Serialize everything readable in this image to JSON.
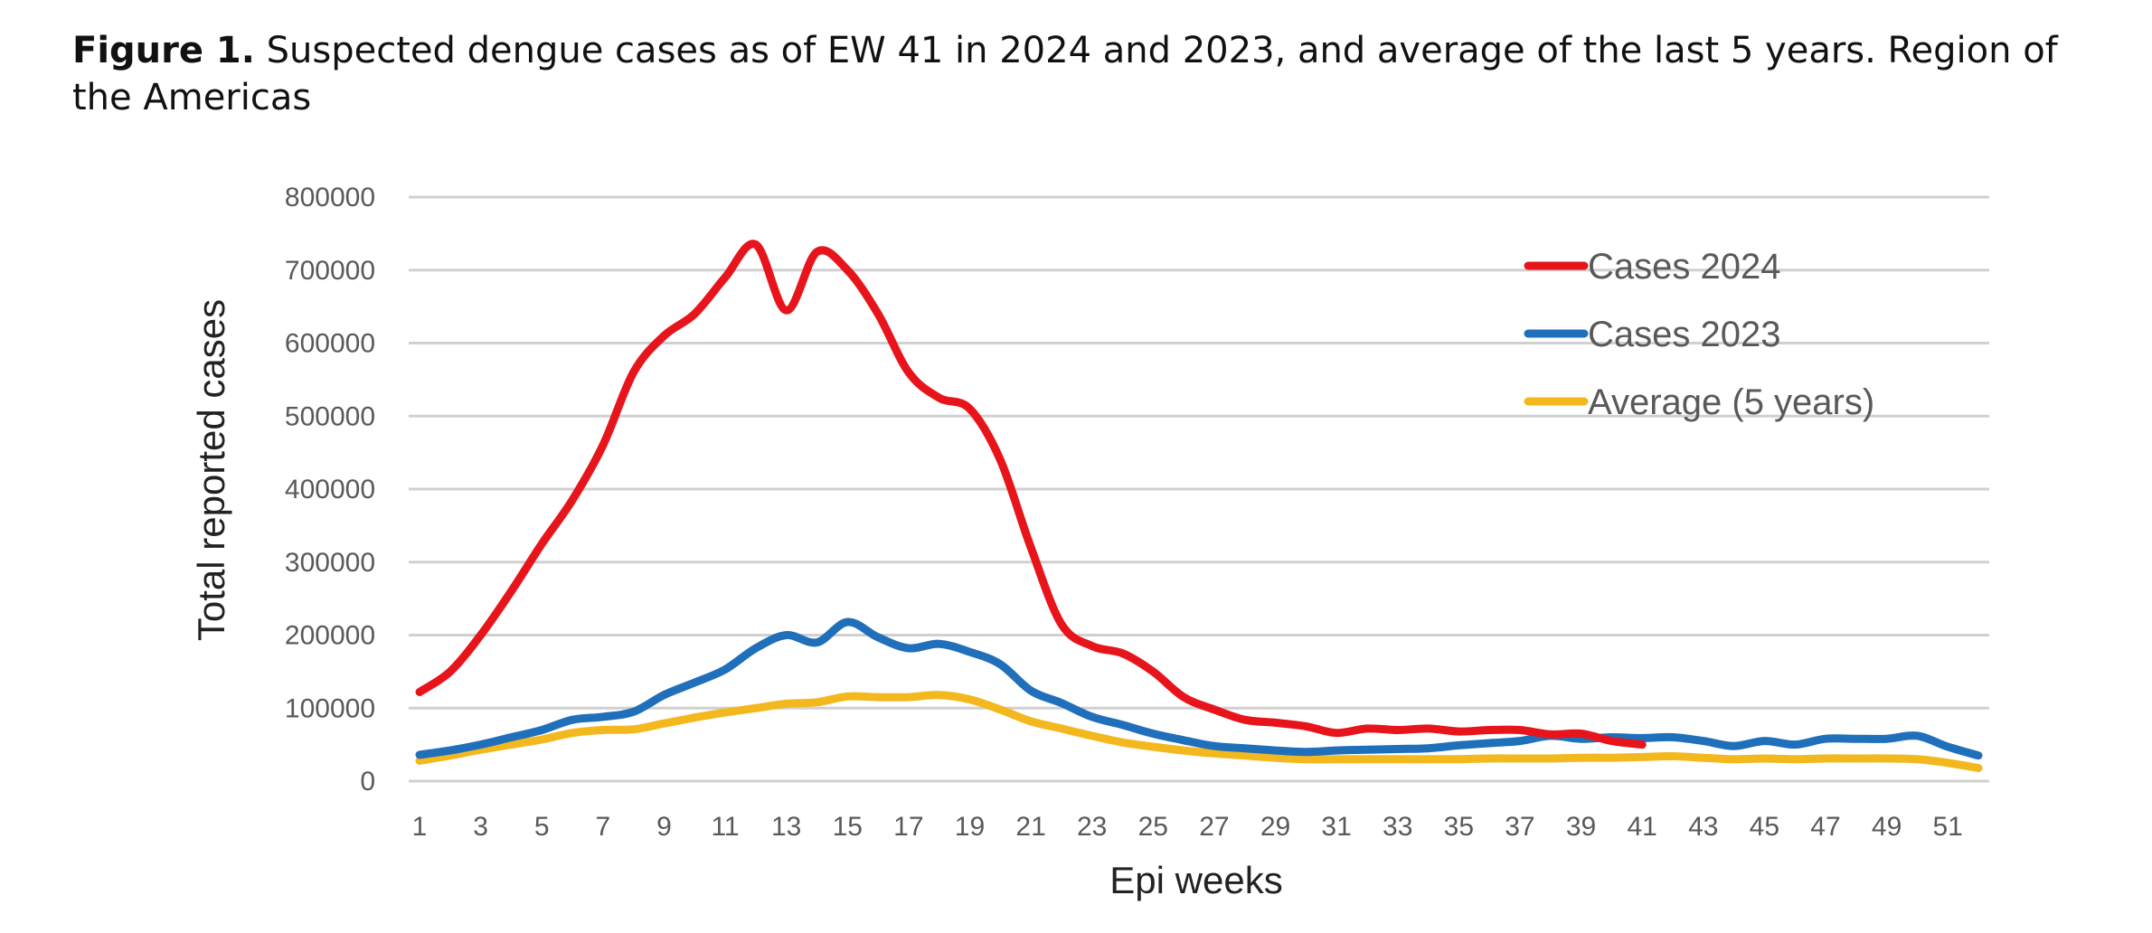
{
  "caption": {
    "label": "Figure 1.",
    "text": " Suspected dengue cases as of EW 41 in 2024 and 2023, and average of the last 5 years. Region of the Americas"
  },
  "chart_data": {
    "type": "line",
    "xlabel": "Epi weeks",
    "ylabel": "Total reported cases",
    "ylim": [
      0,
      800000
    ],
    "yticks": [
      0,
      100000,
      200000,
      300000,
      400000,
      500000,
      600000,
      700000,
      800000
    ],
    "xlim": [
      1,
      52
    ],
    "xticks": [
      1,
      3,
      5,
      7,
      9,
      11,
      13,
      15,
      17,
      19,
      21,
      23,
      25,
      27,
      29,
      31,
      33,
      35,
      37,
      39,
      41,
      43,
      45,
      47,
      49,
      51
    ],
    "grid": "horizontal",
    "legend_position": "top-right",
    "series": [
      {
        "name": "Cases 2024",
        "color": "#e8141b",
        "x": [
          1,
          2,
          3,
          4,
          5,
          6,
          7,
          8,
          9,
          10,
          11,
          12,
          13,
          14,
          15,
          16,
          17,
          18,
          19,
          20,
          21,
          22,
          23,
          24,
          25,
          26,
          27,
          28,
          29,
          30,
          31,
          32,
          33,
          34,
          35,
          36,
          37,
          38,
          39,
          40,
          41
        ],
        "values": [
          122000,
          150000,
          200000,
          260000,
          325000,
          385000,
          460000,
          560000,
          610000,
          640000,
          690000,
          735000,
          645000,
          725000,
          700000,
          640000,
          560000,
          525000,
          510000,
          440000,
          320000,
          215000,
          185000,
          175000,
          150000,
          115000,
          98000,
          84000,
          80000,
          75000,
          66000,
          72000,
          70000,
          72000,
          68000,
          70000,
          70000,
          64000,
          65000,
          55000,
          50000
        ]
      },
      {
        "name": "Cases 2023",
        "color": "#1f6fbb",
        "x": [
          1,
          2,
          3,
          4,
          5,
          6,
          7,
          8,
          9,
          10,
          11,
          12,
          13,
          14,
          15,
          16,
          17,
          18,
          19,
          20,
          21,
          22,
          23,
          24,
          25,
          26,
          27,
          28,
          29,
          30,
          31,
          32,
          33,
          34,
          35,
          36,
          37,
          38,
          39,
          40,
          41,
          42,
          43,
          44,
          45,
          46,
          47,
          48,
          49,
          50,
          51,
          52
        ],
        "values": [
          36000,
          42000,
          50000,
          60000,
          70000,
          84000,
          88000,
          95000,
          118000,
          135000,
          153000,
          182000,
          200000,
          190000,
          218000,
          197000,
          182000,
          188000,
          177000,
          160000,
          124000,
          107000,
          88000,
          77000,
          65000,
          56000,
          48000,
          45000,
          42000,
          40000,
          42000,
          43000,
          44000,
          45000,
          49000,
          52000,
          55000,
          62000,
          58000,
          60000,
          59000,
          60000,
          55000,
          48000,
          55000,
          50000,
          58000,
          58000,
          58000,
          62000,
          47000,
          35000
        ]
      },
      {
        "name": "Average (5 years)",
        "color": "#f4b81f",
        "x": [
          1,
          2,
          3,
          4,
          5,
          6,
          7,
          8,
          9,
          10,
          11,
          12,
          13,
          14,
          15,
          16,
          17,
          18,
          19,
          20,
          21,
          22,
          23,
          24,
          25,
          26,
          27,
          28,
          29,
          30,
          31,
          32,
          33,
          34,
          35,
          36,
          37,
          38,
          39,
          40,
          41,
          42,
          43,
          44,
          45,
          46,
          47,
          48,
          49,
          50,
          51,
          52
        ],
        "values": [
          28000,
          35000,
          43000,
          50000,
          57000,
          66000,
          70000,
          71000,
          79000,
          87000,
          94000,
          100000,
          106000,
          108000,
          116000,
          115000,
          115000,
          118000,
          112000,
          98000,
          82000,
          72000,
          62000,
          53000,
          47000,
          42000,
          38000,
          35000,
          32000,
          30000,
          30000,
          30000,
          30000,
          30000,
          30000,
          31000,
          31000,
          31000,
          32000,
          32000,
          33000,
          34000,
          32000,
          30000,
          31000,
          30000,
          31000,
          31000,
          31000,
          30000,
          25000,
          18000
        ]
      }
    ]
  }
}
